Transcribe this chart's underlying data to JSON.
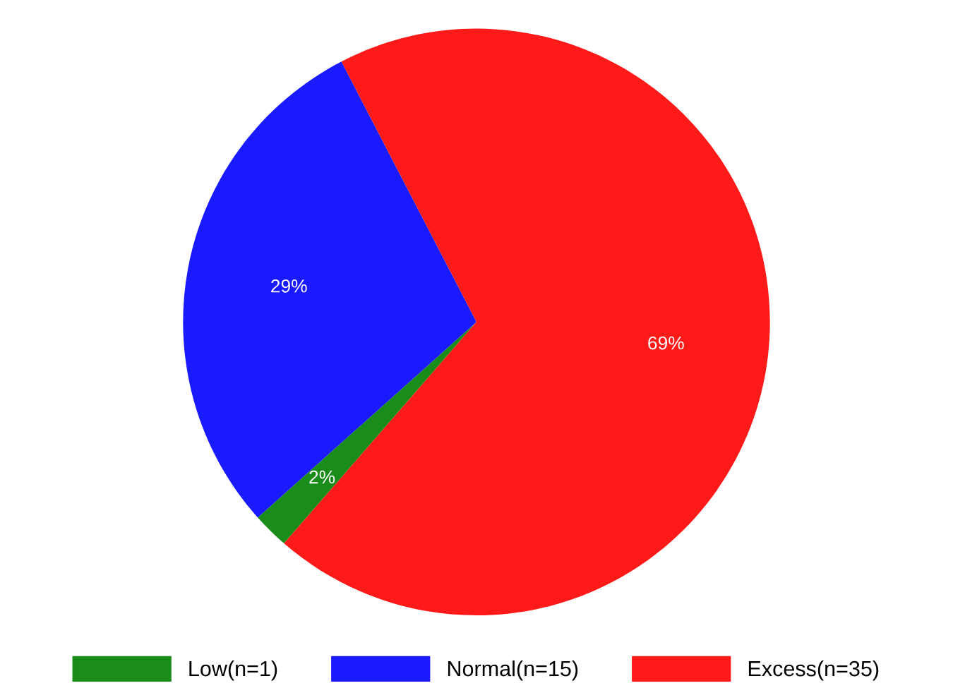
{
  "chart_data": {
    "type": "pie",
    "categories": [
      "Low(n=1)",
      "Normal(n=15)",
      "Excess(n=35)"
    ],
    "values": [
      2,
      29,
      69
    ],
    "value_labels": [
      "2%",
      "29%",
      "69%"
    ],
    "colors": [
      "#1a8c1a",
      "#1a1aff",
      "#ff1a1a"
    ],
    "legend": "bottom"
  }
}
